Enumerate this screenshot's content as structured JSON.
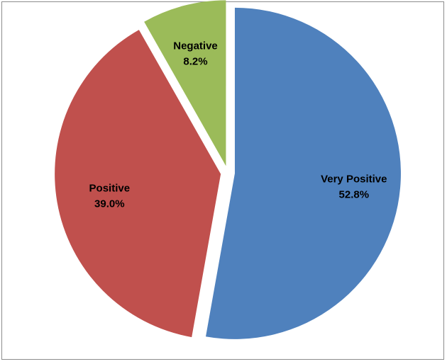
{
  "chart_data": {
    "type": "pie",
    "title": "",
    "legend": "none",
    "slices": [
      {
        "label": "Very Positive",
        "value": 52.8,
        "value_text": "52.8%",
        "color": "#4f81bd"
      },
      {
        "label": "Positive",
        "value": 39.0,
        "value_text": "39.0%",
        "color": "#c0504d"
      },
      {
        "label": "Negative",
        "value": 8.2,
        "value_text": "8.2%",
        "color": "#9bbb59"
      }
    ]
  }
}
